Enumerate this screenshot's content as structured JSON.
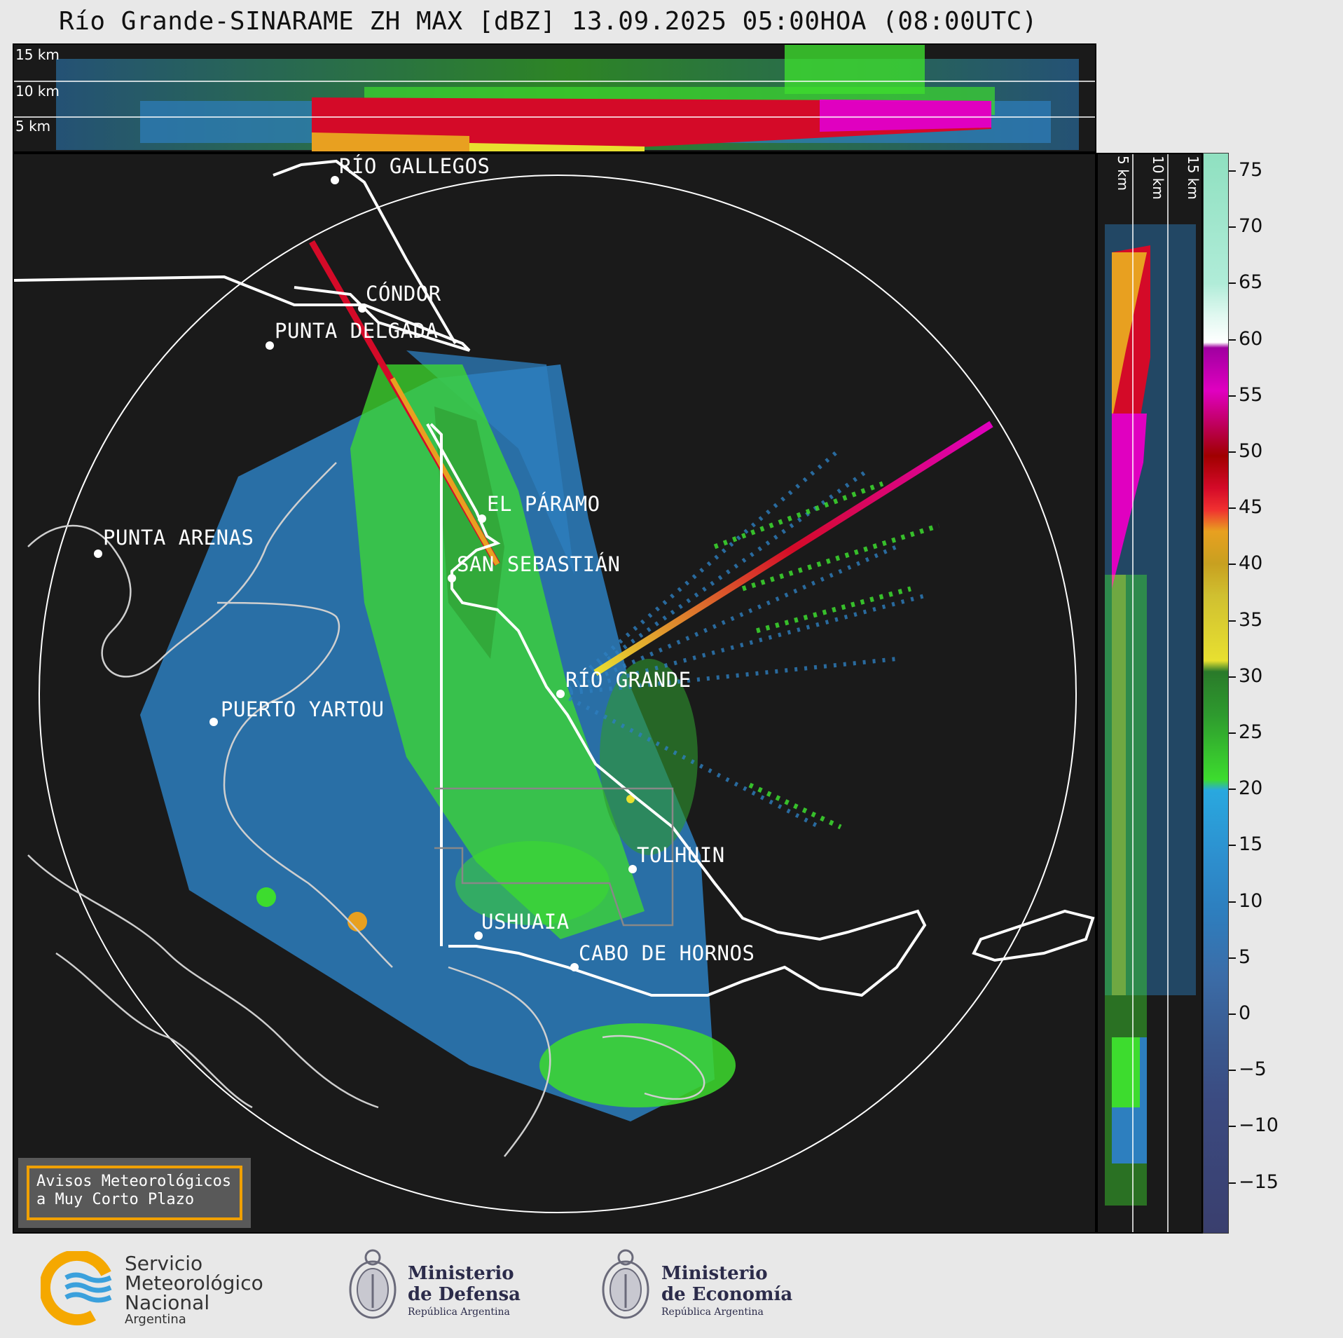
{
  "title": "Río Grande-SINARAME ZH MAX [dBZ] 13.09.2025 05:00HOA (08:00UTC)",
  "top_panel": {
    "height_labels": [
      "15 km",
      "10 km",
      "5 km"
    ]
  },
  "side_panel": {
    "height_labels": [
      "5 km",
      "10 km",
      "15 km"
    ]
  },
  "cities": [
    {
      "id": "rio-gallegos",
      "label": "RÍO GALLEGOS"
    },
    {
      "id": "condor",
      "label": "CÓNDOR"
    },
    {
      "id": "punta-delgada",
      "label": "PUNTA DELGADA"
    },
    {
      "id": "el-paramo",
      "label": "EL PÁRAMO"
    },
    {
      "id": "punta-arenas",
      "label": "PUNTA ARENAS"
    },
    {
      "id": "san-sebastian",
      "label": "SAN SEBASTIÁN"
    },
    {
      "id": "rio-grande",
      "label": "RÍO GRANDE"
    },
    {
      "id": "puerto-yartou",
      "label": "PUERTO YARTOU"
    },
    {
      "id": "tolhuin",
      "label": "TOLHUIN"
    },
    {
      "id": "ushuaia",
      "label": "USHUAIA"
    },
    {
      "id": "cabo-de-hornos",
      "label": "CABO DE HORNOS"
    }
  ],
  "colorbar": {
    "unit": "dBZ",
    "ticks": [
      "75",
      "70",
      "65",
      "60",
      "55",
      "50",
      "45",
      "40",
      "35",
      "30",
      "25",
      "20",
      "15",
      "10",
      "5",
      "0",
      "−5",
      "−10",
      "−15"
    ],
    "colors": {
      "clear_air": "#3a3f6e",
      "weak": "#2d7fbf",
      "light": "#29a8df",
      "moderate": "#3ddc2e",
      "heavy": "#e8e030",
      "intense": "#e8a020",
      "very_intense": "#d40a28",
      "extreme": "#e000c0",
      "hail": "#8fe0c0"
    }
  },
  "warning": {
    "line1": "Avisos Meteorológicos",
    "line2": "a Muy Corto Plazo"
  },
  "footer": {
    "smn": {
      "line1": "Servicio",
      "line2": "Meteorológico",
      "line3": "Nacional",
      "line4": "Argentina"
    },
    "defensa": {
      "line1": "Ministerio",
      "line2": "de Defensa",
      "line3": "República Argentina"
    },
    "economia": {
      "line1": "Ministerio",
      "line2": "de Economía",
      "line3": "República Argentina"
    }
  }
}
